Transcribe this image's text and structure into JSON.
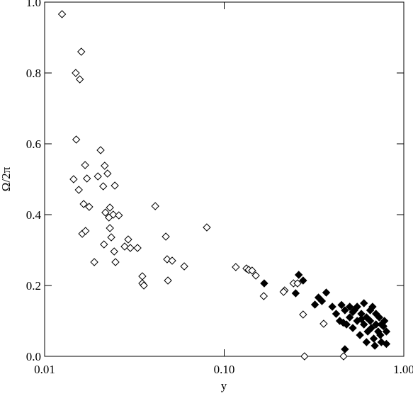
{
  "chart_data": {
    "type": "scatter",
    "x_label": "y",
    "y_label": "Ω/2π",
    "xscale": "log",
    "xlim": [
      0.01,
      1.0
    ],
    "ylim": [
      0.0,
      1.0
    ],
    "xticks": [
      {
        "value": 0.01,
        "label": "0.01"
      },
      {
        "value": 0.1,
        "label": "0.10"
      },
      {
        "value": 1.0,
        "label": "1.00"
      }
    ],
    "yticks": [
      {
        "value": 0.0,
        "label": "0.0"
      },
      0.2,
      0.4,
      0.6,
      0.8,
      {
        "value": 1.0,
        "label": "1.0"
      }
    ],
    "series": [
      {
        "color": "#000000",
        "filled": false,
        "x": [
          0.0125,
          0.016,
          0.0149,
          0.0157,
          0.015,
          0.0205,
          0.0145,
          0.0155,
          0.0168,
          0.0216,
          0.0224,
          0.0172,
          0.0198,
          0.0212,
          0.0246,
          0.0165,
          0.0177,
          0.0218,
          0.0231,
          0.0241,
          0.0259,
          0.0228,
          0.0162,
          0.0169,
          0.0231,
          0.0235,
          0.0214,
          0.0292,
          0.0279,
          0.03,
          0.0329,
          0.0244,
          0.0189,
          0.0248,
          0.0413,
          0.0473,
          0.0481,
          0.0513,
          0.0599,
          0.035,
          0.035,
          0.0357,
          0.0486,
          0.08,
          0.116,
          0.133,
          0.137,
          0.143,
          0.15,
          0.166,
          0.217,
          0.214,
          0.243,
          0.256,
          0.275,
          0.358,
          0.28,
          0.462
        ],
        "y": [
          0.966,
          0.86,
          0.8,
          0.782,
          0.612,
          0.582,
          0.5,
          0.47,
          0.54,
          0.538,
          0.516,
          0.502,
          0.508,
          0.48,
          0.482,
          0.43,
          0.422,
          0.406,
          0.42,
          0.4,
          0.398,
          0.392,
          0.346,
          0.354,
          0.362,
          0.336,
          0.316,
          0.33,
          0.31,
          0.306,
          0.306,
          0.296,
          0.266,
          0.266,
          0.424,
          0.338,
          0.274,
          0.27,
          0.254,
          0.226,
          0.206,
          0.2,
          0.214,
          0.364,
          0.252,
          0.248,
          0.244,
          0.242,
          0.228,
          0.17,
          0.186,
          0.182,
          0.206,
          0.206,
          0.118,
          0.092,
          0.0,
          0.0
        ]
      },
      {
        "color": "#000000",
        "filled": true,
        "x": [
          0.167,
          0.26,
          0.275,
          0.25,
          0.335,
          0.37,
          0.35,
          0.32,
          0.4,
          0.42,
          0.44,
          0.45,
          0.47,
          0.48,
          0.5,
          0.5,
          0.52,
          0.53,
          0.55,
          0.55,
          0.57,
          0.58,
          0.6,
          0.6,
          0.62,
          0.63,
          0.65,
          0.65,
          0.67,
          0.68,
          0.7,
          0.7,
          0.72,
          0.73,
          0.75,
          0.75,
          0.78,
          0.8,
          0.8,
          0.47,
          0.46,
          0.62,
          0.66,
          0.58,
          0.52,
          0.69,
          0.74,
          0.77
        ],
        "y": [
          0.206,
          0.23,
          0.214,
          0.178,
          0.166,
          0.18,
          0.156,
          0.146,
          0.14,
          0.12,
          0.1,
          0.145,
          0.13,
          0.09,
          0.14,
          0.11,
          0.08,
          0.13,
          0.1,
          0.14,
          0.06,
          0.12,
          0.09,
          0.15,
          0.11,
          0.07,
          0.13,
          0.1,
          0.14,
          0.05,
          0.09,
          0.12,
          0.07,
          0.11,
          0.04,
          0.09,
          0.1,
          0.035,
          0.07,
          0.02,
          0.095,
          0.04,
          0.08,
          0.105,
          0.125,
          0.03,
          0.06,
          0.085
        ]
      }
    ]
  }
}
